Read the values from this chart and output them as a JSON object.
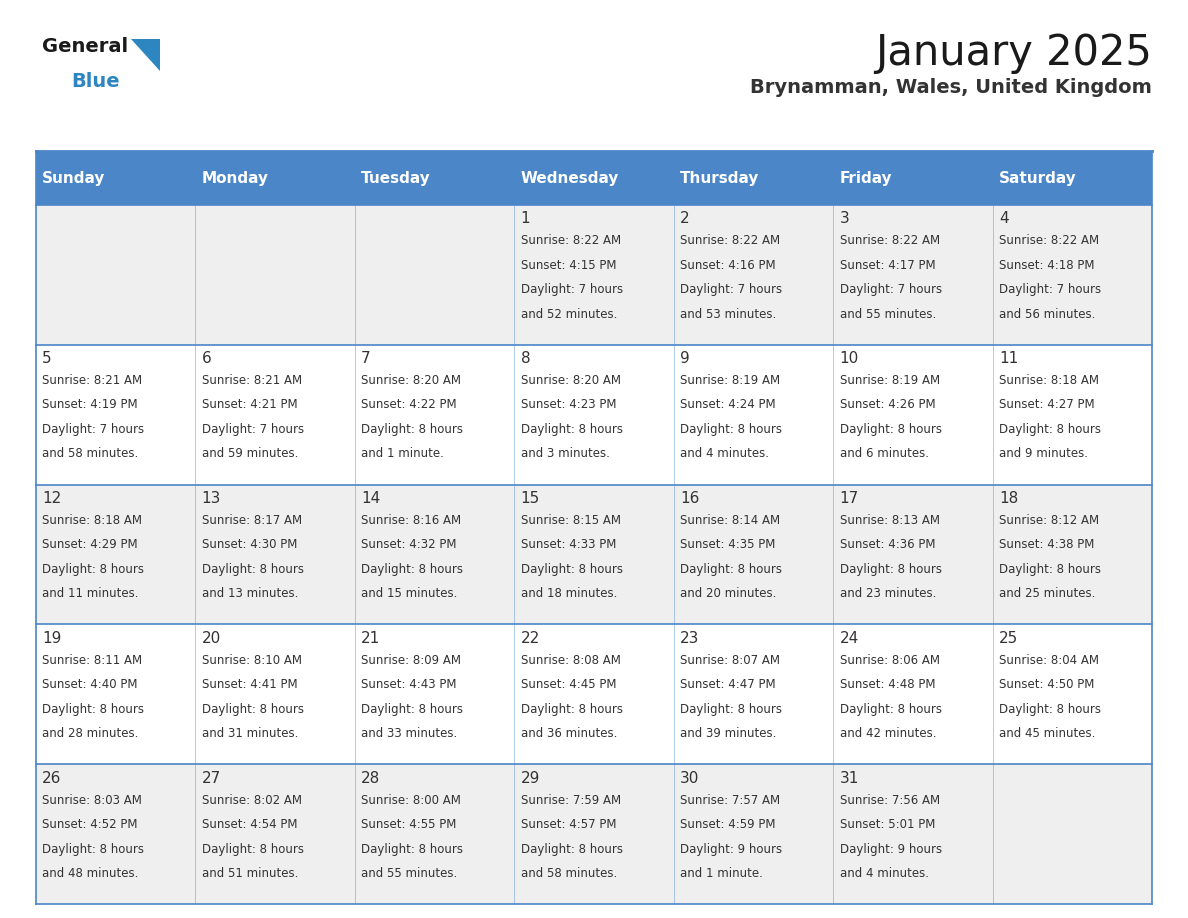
{
  "title": "January 2025",
  "subtitle": "Brynamman, Wales, United Kingdom",
  "days_of_week": [
    "Sunday",
    "Monday",
    "Tuesday",
    "Wednesday",
    "Thursday",
    "Friday",
    "Saturday"
  ],
  "header_bg": "#4A86C8",
  "header_text": "#FFFFFF",
  "cell_bg_light": "#EFEFEF",
  "cell_bg_white": "#FFFFFF",
  "text_color": "#333333",
  "line_color": "#4A86C8",
  "title_color": "#1a1a1a",
  "subtitle_color": "#333333",
  "logo_general_color": "#1a1a1a",
  "logo_blue_color": "#2E86C1",
  "logo_triangle_color": "#2E86C1",
  "calendar_data": [
    [
      {
        "day": "",
        "sunrise": "",
        "sunset": "",
        "daylight": ""
      },
      {
        "day": "",
        "sunrise": "",
        "sunset": "",
        "daylight": ""
      },
      {
        "day": "",
        "sunrise": "",
        "sunset": "",
        "daylight": ""
      },
      {
        "day": "1",
        "sunrise": "8:22 AM",
        "sunset": "4:15 PM",
        "daylight": "7 hours and 52 minutes."
      },
      {
        "day": "2",
        "sunrise": "8:22 AM",
        "sunset": "4:16 PM",
        "daylight": "7 hours and 53 minutes."
      },
      {
        "day": "3",
        "sunrise": "8:22 AM",
        "sunset": "4:17 PM",
        "daylight": "7 hours and 55 minutes."
      },
      {
        "day": "4",
        "sunrise": "8:22 AM",
        "sunset": "4:18 PM",
        "daylight": "7 hours and 56 minutes."
      }
    ],
    [
      {
        "day": "5",
        "sunrise": "8:21 AM",
        "sunset": "4:19 PM",
        "daylight": "7 hours and 58 minutes."
      },
      {
        "day": "6",
        "sunrise": "8:21 AM",
        "sunset": "4:21 PM",
        "daylight": "7 hours and 59 minutes."
      },
      {
        "day": "7",
        "sunrise": "8:20 AM",
        "sunset": "4:22 PM",
        "daylight": "8 hours and 1 minute."
      },
      {
        "day": "8",
        "sunrise": "8:20 AM",
        "sunset": "4:23 PM",
        "daylight": "8 hours and 3 minutes."
      },
      {
        "day": "9",
        "sunrise": "8:19 AM",
        "sunset": "4:24 PM",
        "daylight": "8 hours and 4 minutes."
      },
      {
        "day": "10",
        "sunrise": "8:19 AM",
        "sunset": "4:26 PM",
        "daylight": "8 hours and 6 minutes."
      },
      {
        "day": "11",
        "sunrise": "8:18 AM",
        "sunset": "4:27 PM",
        "daylight": "8 hours and 9 minutes."
      }
    ],
    [
      {
        "day": "12",
        "sunrise": "8:18 AM",
        "sunset": "4:29 PM",
        "daylight": "8 hours and 11 minutes."
      },
      {
        "day": "13",
        "sunrise": "8:17 AM",
        "sunset": "4:30 PM",
        "daylight": "8 hours and 13 minutes."
      },
      {
        "day": "14",
        "sunrise": "8:16 AM",
        "sunset": "4:32 PM",
        "daylight": "8 hours and 15 minutes."
      },
      {
        "day": "15",
        "sunrise": "8:15 AM",
        "sunset": "4:33 PM",
        "daylight": "8 hours and 18 minutes."
      },
      {
        "day": "16",
        "sunrise": "8:14 AM",
        "sunset": "4:35 PM",
        "daylight": "8 hours and 20 minutes."
      },
      {
        "day": "17",
        "sunrise": "8:13 AM",
        "sunset": "4:36 PM",
        "daylight": "8 hours and 23 minutes."
      },
      {
        "day": "18",
        "sunrise": "8:12 AM",
        "sunset": "4:38 PM",
        "daylight": "8 hours and 25 minutes."
      }
    ],
    [
      {
        "day": "19",
        "sunrise": "8:11 AM",
        "sunset": "4:40 PM",
        "daylight": "8 hours and 28 minutes."
      },
      {
        "day": "20",
        "sunrise": "8:10 AM",
        "sunset": "4:41 PM",
        "daylight": "8 hours and 31 minutes."
      },
      {
        "day": "21",
        "sunrise": "8:09 AM",
        "sunset": "4:43 PM",
        "daylight": "8 hours and 33 minutes."
      },
      {
        "day": "22",
        "sunrise": "8:08 AM",
        "sunset": "4:45 PM",
        "daylight": "8 hours and 36 minutes."
      },
      {
        "day": "23",
        "sunrise": "8:07 AM",
        "sunset": "4:47 PM",
        "daylight": "8 hours and 39 minutes."
      },
      {
        "day": "24",
        "sunrise": "8:06 AM",
        "sunset": "4:48 PM",
        "daylight": "8 hours and 42 minutes."
      },
      {
        "day": "25",
        "sunrise": "8:04 AM",
        "sunset": "4:50 PM",
        "daylight": "8 hours and 45 minutes."
      }
    ],
    [
      {
        "day": "26",
        "sunrise": "8:03 AM",
        "sunset": "4:52 PM",
        "daylight": "8 hours and 48 minutes."
      },
      {
        "day": "27",
        "sunrise": "8:02 AM",
        "sunset": "4:54 PM",
        "daylight": "8 hours and 51 minutes."
      },
      {
        "day": "28",
        "sunrise": "8:00 AM",
        "sunset": "4:55 PM",
        "daylight": "8 hours and 55 minutes."
      },
      {
        "day": "29",
        "sunrise": "7:59 AM",
        "sunset": "4:57 PM",
        "daylight": "8 hours and 58 minutes."
      },
      {
        "day": "30",
        "sunrise": "7:57 AM",
        "sunset": "4:59 PM",
        "daylight": "9 hours and 1 minute."
      },
      {
        "day": "31",
        "sunrise": "7:56 AM",
        "sunset": "5:01 PM",
        "daylight": "9 hours and 4 minutes."
      },
      {
        "day": "",
        "sunrise": "",
        "sunset": "",
        "daylight": ""
      }
    ]
  ]
}
